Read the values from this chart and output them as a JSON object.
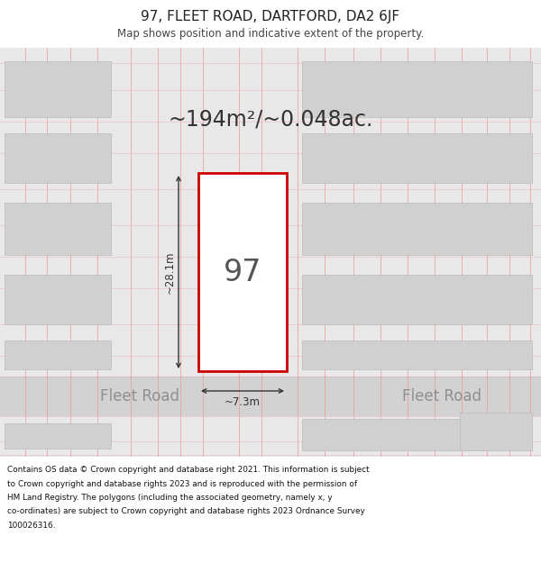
{
  "title": "97, FLEET ROAD, DARTFORD, DA2 6JF",
  "subtitle": "Map shows position and indicative extent of the property.",
  "area_text": "~194m²/~0.048ac.",
  "property_number": "97",
  "dim_width": "~7.3m",
  "dim_height": "~28.1m",
  "road_label_left": "Fleet Road",
  "road_label_right": "Fleet Road",
  "footer_lines": [
    "Contains OS data © Crown copyright and database right 2021. This information is subject",
    "to Crown copyright and database rights 2023 and is reproduced with the permission of",
    "HM Land Registry. The polygons (including the associated geometry, namely x, y",
    "co-ordinates) are subject to Crown copyright and database rights 2023 Ordnance Survey",
    "100026316."
  ],
  "title_bg": "#ffffff",
  "map_bg": "#e8e8e8",
  "road_bg": "#d2d2d2",
  "footer_bg": "#ffffff",
  "grid_color": "#e8a0a0",
  "block_color": "#d0d0d0",
  "block_edge": "#bbbbbb",
  "property_fill": "#ffffff",
  "property_edge": "#cc0000",
  "label_color": "#888888",
  "dim_color": "#333333",
  "title_color": "#222222",
  "subtitle_color": "#444444",
  "area_color": "#333333",
  "footer_color": "#111111",
  "prop_number_color": "#555555"
}
